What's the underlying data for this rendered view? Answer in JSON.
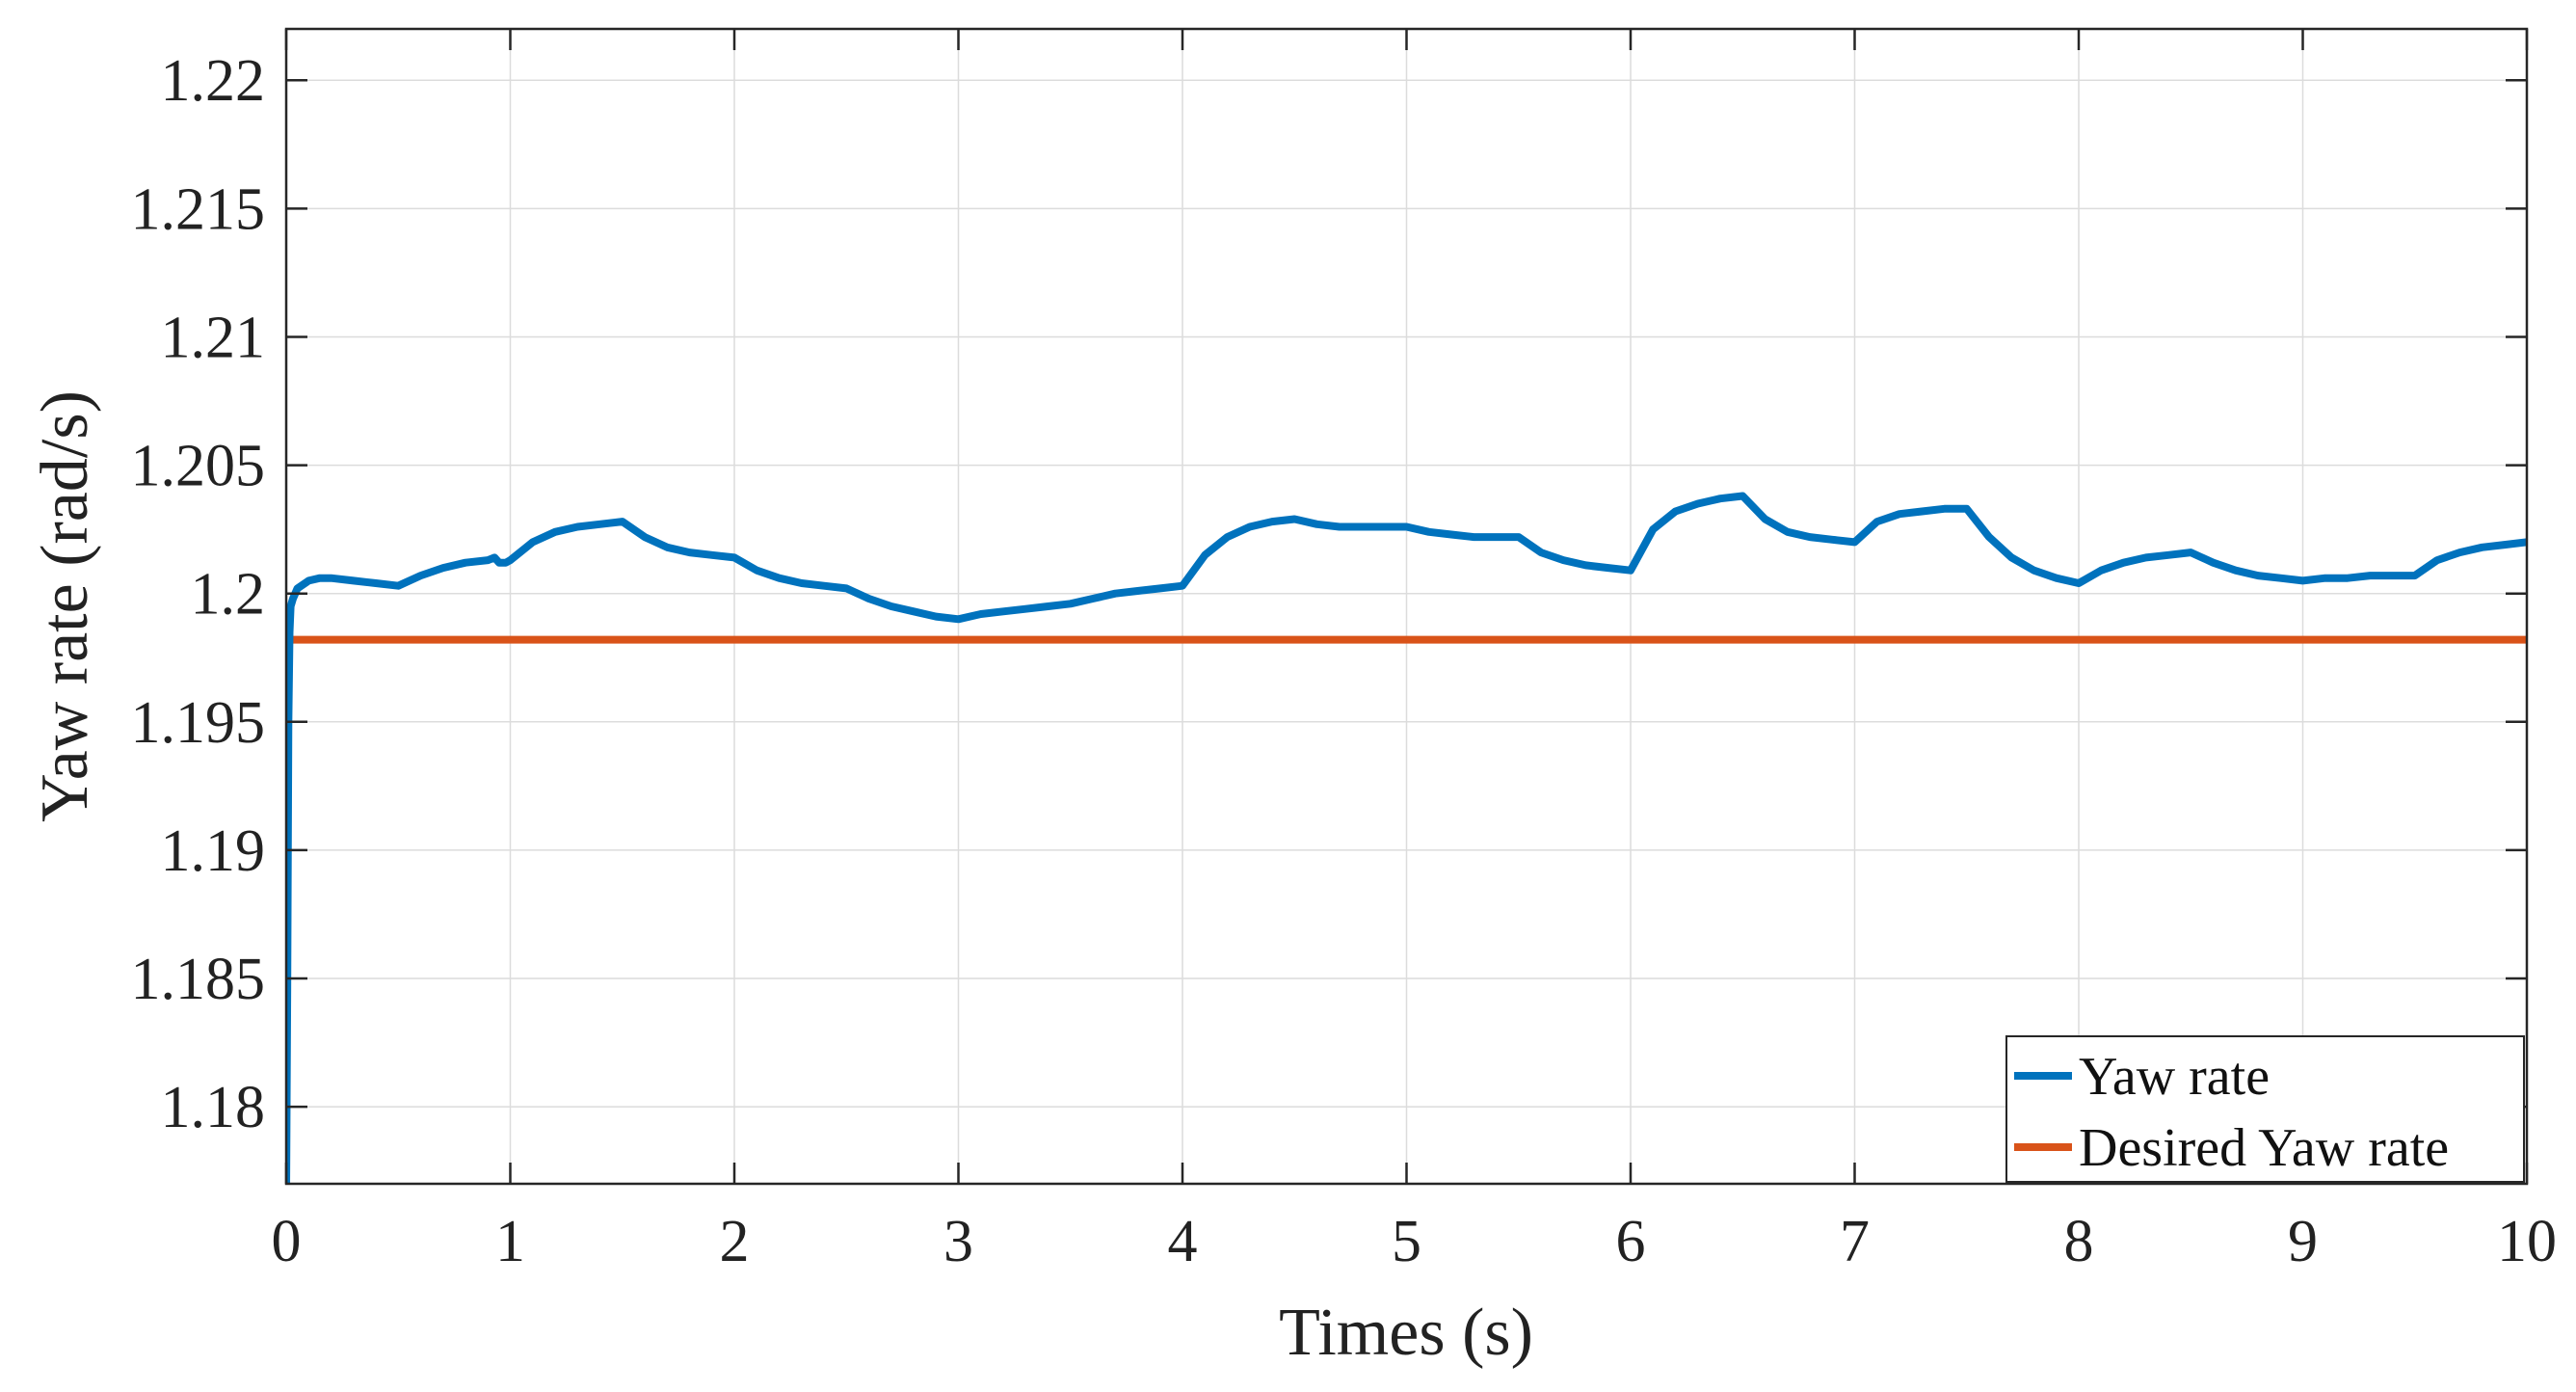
{
  "chart_data": {
    "type": "line",
    "xlabel": "Times (s)",
    "ylabel": "Yaw rate (rad/s)",
    "xlim": [
      0,
      10
    ],
    "ylim": [
      1.177,
      1.222
    ],
    "xticks": [
      "0",
      "1",
      "2",
      "3",
      "4",
      "5",
      "6",
      "7",
      "8",
      "9",
      "10"
    ],
    "yticks": [
      "1.18",
      "1.185",
      "1.19",
      "1.195",
      "1.2",
      "1.205",
      "1.21",
      "1.215",
      "1.22"
    ],
    "grid": true,
    "legend_position": "bottom-right",
    "series": [
      {
        "name": "Yaw rate",
        "color": "#0072BD",
        "x": [
          0,
          0.005,
          0.01,
          0.015,
          0.02,
          0.03,
          0.05,
          0.1,
          0.15,
          0.2,
          0.3,
          0.4,
          0.5,
          0.6,
          0.7,
          0.8,
          0.9,
          0.93,
          0.95,
          0.98,
          1.0,
          1.1,
          1.2,
          1.3,
          1.4,
          1.5,
          1.6,
          1.7,
          1.8,
          1.9,
          2.0,
          2.1,
          2.2,
          2.3,
          2.4,
          2.5,
          2.6,
          2.7,
          2.8,
          2.9,
          3.0,
          3.1,
          3.2,
          3.3,
          3.4,
          3.5,
          3.6,
          3.7,
          3.8,
          3.9,
          4.0,
          4.1,
          4.2,
          4.3,
          4.4,
          4.5,
          4.6,
          4.7,
          4.8,
          4.9,
          5.0,
          5.1,
          5.2,
          5.3,
          5.4,
          5.5,
          5.6,
          5.7,
          5.8,
          5.9,
          6.0,
          6.1,
          6.2,
          6.3,
          6.4,
          6.5,
          6.6,
          6.7,
          6.8,
          6.9,
          7.0,
          7.1,
          7.2,
          7.3,
          7.4,
          7.5,
          7.6,
          7.7,
          7.8,
          7.9,
          8.0,
          8.1,
          8.2,
          8.3,
          8.4,
          8.5,
          8.6,
          8.7,
          8.8,
          8.9,
          9.0,
          9.1,
          9.2,
          9.3,
          9.4,
          9.5,
          9.6,
          9.7,
          9.8,
          9.9,
          10.0
        ],
        "y": [
          1.1768,
          1.185,
          1.195,
          1.1985,
          1.1995,
          1.1998,
          1.2002,
          1.2005,
          1.2006,
          1.2006,
          1.2005,
          1.2004,
          1.2003,
          1.2007,
          1.201,
          1.2012,
          1.2013,
          1.2014,
          1.2012,
          1.2012,
          1.2013,
          1.202,
          1.2024,
          1.2026,
          1.2027,
          1.2028,
          1.2022,
          1.2018,
          1.2016,
          1.2015,
          1.2014,
          1.2009,
          1.2006,
          1.2004,
          1.2003,
          1.2002,
          1.1998,
          1.1995,
          1.1993,
          1.1991,
          1.199,
          1.1992,
          1.1993,
          1.1994,
          1.1995,
          1.1996,
          1.1998,
          1.2,
          1.2001,
          1.2002,
          1.2003,
          1.2015,
          1.2022,
          1.2026,
          1.2028,
          1.2029,
          1.2027,
          1.2026,
          1.2026,
          1.2026,
          1.2026,
          1.2024,
          1.2023,
          1.2022,
          1.2022,
          1.2022,
          1.2016,
          1.2013,
          1.2011,
          1.201,
          1.2009,
          1.2025,
          1.2032,
          1.2035,
          1.2037,
          1.2038,
          1.2029,
          1.2024,
          1.2022,
          1.2021,
          1.202,
          1.2028,
          1.2031,
          1.2032,
          1.2033,
          1.2033,
          1.2022,
          1.2014,
          1.2009,
          1.2006,
          1.2004,
          1.2009,
          1.2012,
          1.2014,
          1.2015,
          1.2016,
          1.2012,
          1.2009,
          1.2007,
          1.2006,
          1.2005,
          1.2006,
          1.2006,
          1.2007,
          1.2007,
          1.2007,
          1.2013,
          1.2016,
          1.2018,
          1.2019,
          1.202
        ]
      },
      {
        "name": "Desired Yaw rate",
        "color": "#D95319",
        "x": [
          0,
          10
        ],
        "y": [
          1.1982,
          1.1982
        ]
      }
    ]
  }
}
